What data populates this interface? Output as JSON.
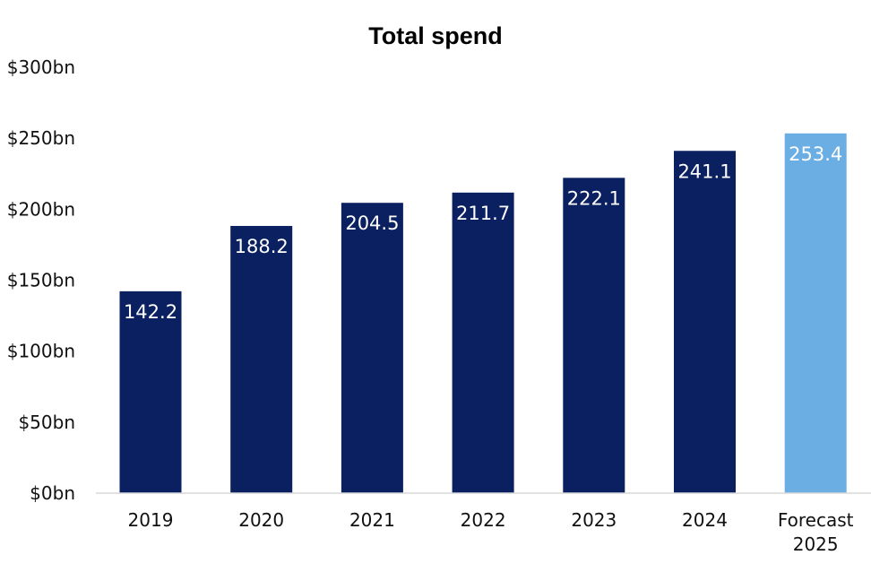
{
  "chart_data": {
    "type": "bar",
    "title": "Total spend",
    "xlabel": "",
    "ylabel": "",
    "ylim": [
      0,
      300
    ],
    "yticks": [
      0,
      50,
      100,
      150,
      200,
      250,
      300
    ],
    "ytick_labels": [
      "$0bn",
      "$50bn",
      "$100bn",
      "$150bn",
      "$200bn",
      "$250bn",
      "$300bn"
    ],
    "categories": [
      [
        "2019"
      ],
      [
        "2020"
      ],
      [
        "2021"
      ],
      [
        "2022"
      ],
      [
        "2023"
      ],
      [
        "2024"
      ],
      [
        "Forecast",
        "2025"
      ]
    ],
    "values": [
      142.2,
      188.2,
      204.5,
      211.7,
      222.1,
      241.1,
      253.4
    ],
    "data_labels": [
      "142.2",
      "188.2",
      "204.5",
      "211.7",
      "222.1",
      "241.1",
      "253.4"
    ],
    "bar_colors": [
      "#0b2060",
      "#0b2060",
      "#0b2060",
      "#0b2060",
      "#0b2060",
      "#0b2060",
      "#6aaee3"
    ],
    "grid": false,
    "legend": "none"
  }
}
